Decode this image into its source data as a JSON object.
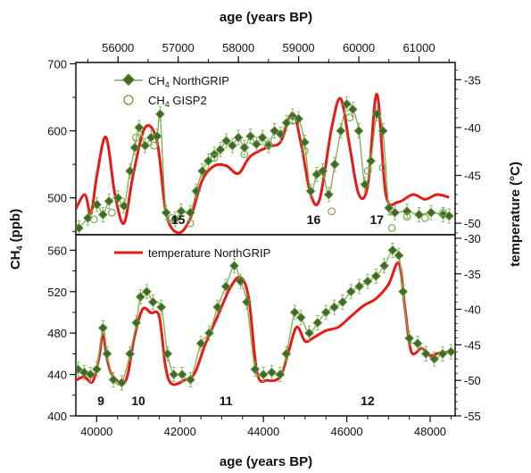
{
  "colors": {
    "ch4_line": "#7fae52",
    "ch4_marker_fill": "#3f6b2a",
    "gisp2_marker": "#77a850",
    "temperature": "#e41b17",
    "axis": "#111111"
  },
  "chart_data": [
    {
      "panel": "upper",
      "type": "line",
      "x_axis_top": {
        "label": "age (years BP)",
        "ticks": [
          "56000",
          "57000",
          "58000",
          "59000",
          "60000",
          "61000"
        ],
        "range": [
          55300,
          61600
        ]
      },
      "y_left": {
        "label_main": "CH",
        "label_sub": "4",
        "label_unit": " (ppb)",
        "ticks": [
          "500",
          "600",
          "700"
        ],
        "range": [
          445,
          702
        ]
      },
      "y_right": {
        "ticks": [
          "-35",
          "-40",
          "-45",
          "-50"
        ],
        "range": [
          -51.2,
          -33.2
        ]
      },
      "legend": [
        {
          "text": "CH",
          "sub": "4",
          "suffix": " NorthGRIP"
        },
        {
          "text": "CH",
          "sub": "4",
          "suffix": " GISP2"
        }
      ],
      "event_labels": [
        {
          "text": "15",
          "x": 57000
        },
        {
          "text": "16",
          "x": 59250
        },
        {
          "text": "17",
          "x": 60300
        }
      ],
      "series": [
        {
          "name": "CH4 NorthGRIP",
          "style": "line-markers",
          "points": [
            [
              55350,
              455
            ],
            [
              55500,
              470
            ],
            [
              55650,
              490
            ],
            [
              55750,
              475
            ],
            [
              55850,
              495
            ],
            [
              56000,
              500
            ],
            [
              56100,
              488
            ],
            [
              56200,
              540
            ],
            [
              56280,
              575
            ],
            [
              56350,
              605
            ],
            [
              56450,
              578
            ],
            [
              56550,
              590
            ],
            [
              56650,
              592
            ],
            [
              56700,
              625
            ],
            [
              56800,
              478
            ],
            [
              56950,
              468
            ],
            [
              57050,
              480
            ],
            [
              57200,
              478
            ],
            [
              57300,
              510
            ],
            [
              57400,
              540
            ],
            [
              57500,
              555
            ],
            [
              57600,
              565
            ],
            [
              57700,
              572
            ],
            [
              57800,
              585
            ],
            [
              57900,
              578
            ],
            [
              58000,
              590
            ],
            [
              58100,
              575
            ],
            [
              58200,
              592
            ],
            [
              58300,
              580
            ],
            [
              58400,
              590
            ],
            [
              58500,
              578
            ],
            [
              58600,
              600
            ],
            [
              58700,
              595
            ],
            [
              58800,
              612
            ],
            [
              58900,
              622
            ],
            [
              59000,
              618
            ],
            [
              59100,
              583
            ],
            [
              59200,
              510
            ],
            [
              59300,
              535
            ],
            [
              59400,
              540
            ],
            [
              59500,
              505
            ],
            [
              59600,
              550
            ],
            [
              59700,
              600
            ],
            [
              59800,
              640
            ],
            [
              59900,
              632
            ],
            [
              60000,
              600
            ],
            [
              60100,
              520
            ],
            [
              60200,
              555
            ],
            [
              60300,
              625
            ],
            [
              60400,
              600
            ],
            [
              60500,
              485
            ],
            [
              60600,
              478
            ],
            [
              60800,
              480
            ],
            [
              61000,
              475
            ],
            [
              61200,
              478
            ],
            [
              61400,
              475
            ],
            [
              61500,
              473
            ]
          ]
        },
        {
          "name": "CH4 GISP2",
          "style": "markers",
          "points": [
            [
              55600,
              468
            ],
            [
              55900,
              478
            ],
            [
              56300,
              590
            ],
            [
              56600,
              578
            ],
            [
              56900,
              470
            ],
            [
              57200,
              462
            ],
            [
              57600,
              560
            ],
            [
              58100,
              565
            ],
            [
              58500,
              580
            ],
            [
              58900,
              615
            ],
            [
              59100,
              570
            ],
            [
              59550,
              480
            ],
            [
              59850,
              620
            ],
            [
              60150,
              540
            ],
            [
              60400,
              545
            ],
            [
              60550,
              455
            ],
            [
              60800,
              472
            ],
            [
              61100,
              470
            ],
            [
              61400,
              478
            ]
          ]
        }
      ]
    },
    {
      "panel": "lower",
      "type": "line",
      "x_axis_bottom": {
        "label": "age (years BP)",
        "ticks": [
          "40000",
          "42000",
          "44000",
          "46000",
          "48000"
        ],
        "range": [
          39500,
          48600
        ]
      },
      "y_left": {
        "ticks": [
          "400",
          "440",
          "480",
          "520",
          "560"
        ],
        "range": [
          400,
          575
        ]
      },
      "y_right": {
        "label": "temperature (°C)",
        "ticks": [
          "-30",
          "-35",
          "-40",
          "-45",
          "-50",
          "-55"
        ],
        "range": [
          -55,
          -29.5
        ]
      },
      "legend": [
        {
          "text": "temperature NorthGRIP"
        }
      ],
      "event_labels": [
        {
          "text": "9",
          "x": 40100
        },
        {
          "text": "10",
          "x": 41000
        },
        {
          "text": "11",
          "x": 43100
        },
        {
          "text": "12",
          "x": 46500
        }
      ],
      "series": [
        {
          "name": "CH4 NorthGRIP",
          "style": "line-markers",
          "points": [
            [
              39550,
              445
            ],
            [
              39700,
              442
            ],
            [
              39850,
              440
            ],
            [
              40000,
              445
            ],
            [
              40150,
              485
            ],
            [
              40250,
              460
            ],
            [
              40400,
              435
            ],
            [
              40600,
              432
            ],
            [
              40800,
              460
            ],
            [
              40950,
              490
            ],
            [
              41050,
              515
            ],
            [
              41200,
              520
            ],
            [
              41350,
              510
            ],
            [
              41550,
              505
            ],
            [
              41700,
              460
            ],
            [
              41850,
              440
            ],
            [
              42050,
              440
            ],
            [
              42250,
              435
            ],
            [
              42500,
              470
            ],
            [
              42700,
              480
            ],
            [
              42900,
              505
            ],
            [
              43100,
              525
            ],
            [
              43300,
              545
            ],
            [
              43450,
              530
            ],
            [
              43600,
              510
            ],
            [
              43800,
              445
            ],
            [
              44000,
              440
            ],
            [
              44200,
              442
            ],
            [
              44400,
              440
            ],
            [
              44550,
              460
            ],
            [
              44750,
              500
            ],
            [
              44900,
              495
            ],
            [
              45100,
              480
            ],
            [
              45300,
              490
            ],
            [
              45500,
              500
            ],
            [
              45700,
              505
            ],
            [
              45900,
              510
            ],
            [
              46100,
              520
            ],
            [
              46300,
              525
            ],
            [
              46500,
              530
            ],
            [
              46700,
              535
            ],
            [
              46900,
              545
            ],
            [
              47100,
              560
            ],
            [
              47250,
              555
            ],
            [
              47350,
              520
            ],
            [
              47500,
              475
            ],
            [
              47700,
              470
            ],
            [
              47900,
              460
            ],
            [
              48100,
              455
            ],
            [
              48300,
              460
            ],
            [
              48500,
              462
            ]
          ]
        },
        {
          "name": "temperature NorthGRIP",
          "style": "line",
          "axis": "right",
          "points": [
            [
              39500,
              -50
            ],
            [
              39700,
              -49.5
            ],
            [
              39900,
              -50.2
            ],
            [
              40050,
              -47
            ],
            [
              40150,
              -43.5
            ],
            [
              40250,
              -47
            ],
            [
              40400,
              -49.5
            ],
            [
              40700,
              -50
            ],
            [
              40900,
              -44
            ],
            [
              41100,
              -40
            ],
            [
              41300,
              -40.5
            ],
            [
              41500,
              -41
            ],
            [
              41650,
              -48
            ],
            [
              41800,
              -50.5
            ],
            [
              42100,
              -50
            ],
            [
              42350,
              -49
            ],
            [
              42600,
              -45
            ],
            [
              42900,
              -41
            ],
            [
              43200,
              -37
            ],
            [
              43450,
              -35.5
            ],
            [
              43650,
              -38.5
            ],
            [
              43850,
              -49
            ],
            [
              44100,
              -50
            ],
            [
              44400,
              -49.5
            ],
            [
              44600,
              -46
            ],
            [
              44800,
              -42.5
            ],
            [
              45000,
              -44.5
            ],
            [
              45200,
              -44
            ],
            [
              45500,
              -43
            ],
            [
              45800,
              -42.5
            ],
            [
              46100,
              -41
            ],
            [
              46400,
              -39.5
            ],
            [
              46700,
              -38.5
            ],
            [
              47000,
              -36.5
            ],
            [
              47250,
              -33.5
            ],
            [
              47400,
              -40
            ],
            [
              47550,
              -46
            ],
            [
              47800,
              -45.5
            ],
            [
              48000,
              -46.5
            ],
            [
              48200,
              -46.2
            ],
            [
              48500,
              -46
            ]
          ]
        }
      ]
    }
  ],
  "upper_temperature": {
    "name": "temperature NorthGRIP",
    "points": [
      [
        55300,
        -48.5
      ],
      [
        55450,
        -47
      ],
      [
        55550,
        -49
      ],
      [
        55650,
        -45
      ],
      [
        55800,
        -41
      ],
      [
        55950,
        -47
      ],
      [
        56100,
        -50
      ],
      [
        56250,
        -45
      ],
      [
        56450,
        -40
      ],
      [
        56650,
        -41.5
      ],
      [
        56800,
        -49
      ],
      [
        57000,
        -51
      ],
      [
        57200,
        -49.5
      ],
      [
        57400,
        -45.5
      ],
      [
        57600,
        -44
      ],
      [
        57800,
        -44
      ],
      [
        58000,
        -44.8
      ],
      [
        58200,
        -43
      ],
      [
        58500,
        -42
      ],
      [
        58700,
        -41.5
      ],
      [
        58900,
        -38.5
      ],
      [
        59050,
        -42
      ],
      [
        59200,
        -47
      ],
      [
        59350,
        -47.5
      ],
      [
        59550,
        -40
      ],
      [
        59700,
        -37
      ],
      [
        59850,
        -42
      ],
      [
        60000,
        -47
      ],
      [
        60150,
        -46
      ],
      [
        60300,
        -36.5
      ],
      [
        60450,
        -47
      ],
      [
        60650,
        -47.8
      ],
      [
        60900,
        -47
      ],
      [
        61100,
        -47.5
      ],
      [
        61300,
        -47
      ],
      [
        61500,
        -47.3
      ]
    ]
  }
}
